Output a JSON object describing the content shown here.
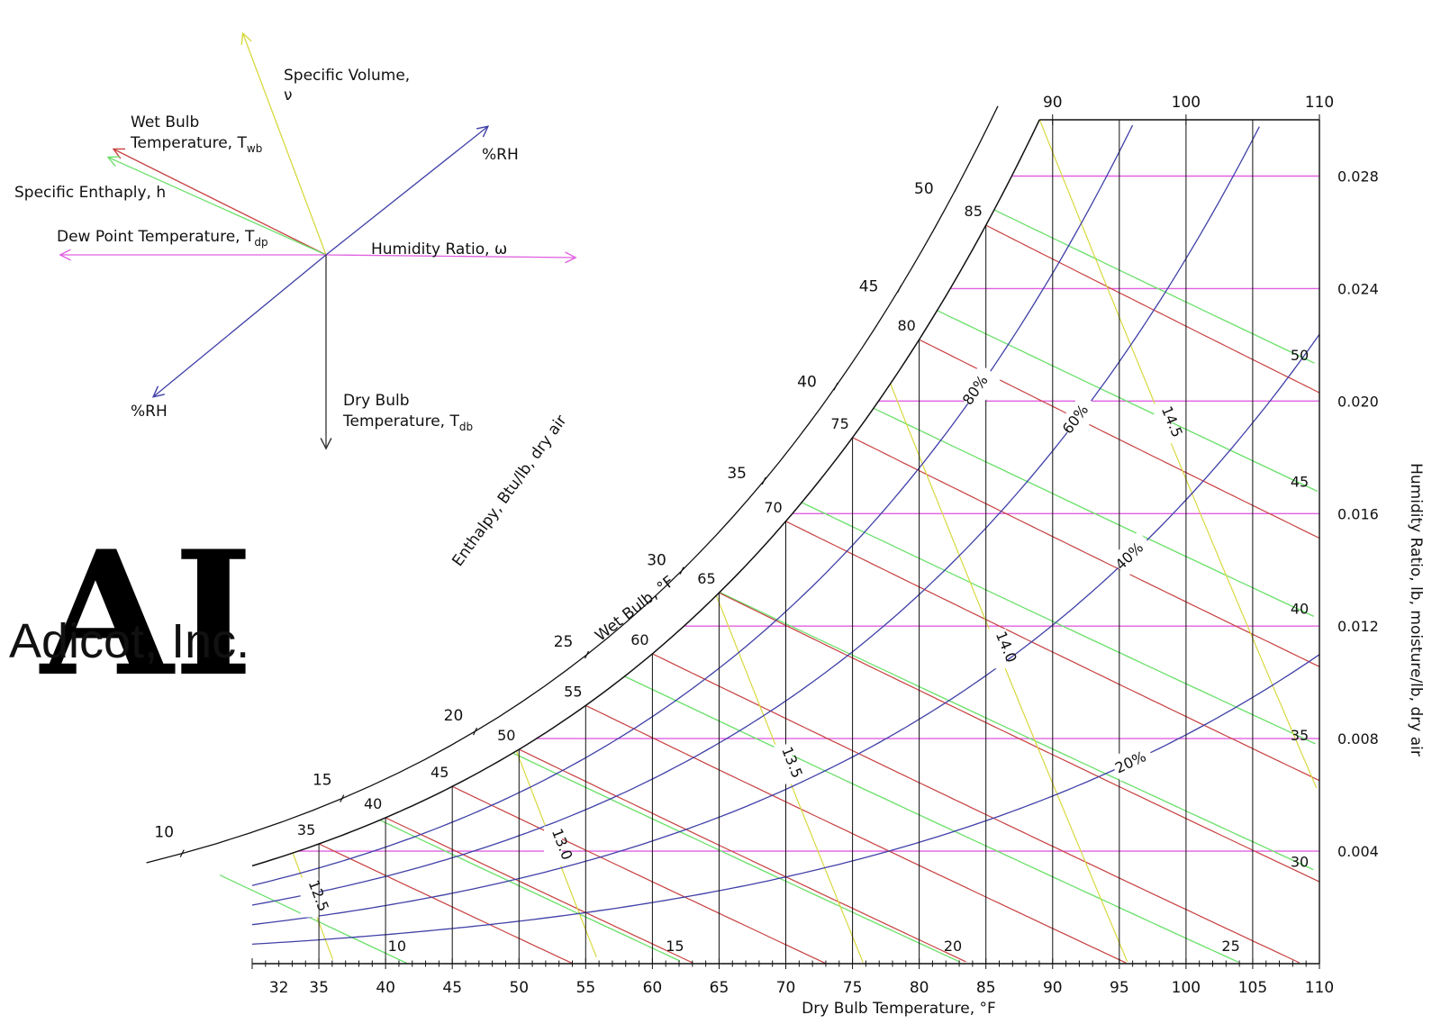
{
  "chart_data": {
    "type": "psychrometric",
    "title": "",
    "xlabel": "Dry Bulb Temperature, °F",
    "ylabel": "Humidity Ratio, lb, moisture/lb, dry air",
    "xlim": [
      30,
      110
    ],
    "ylim": [
      0,
      0.03
    ],
    "x_ticks": [
      "32",
      "35",
      "40",
      "45",
      "50",
      "55",
      "60",
      "65",
      "70",
      "75",
      "80",
      "85",
      "90",
      "95",
      "100",
      "105",
      "110"
    ],
    "top_ticks": [
      "90",
      "100",
      "110"
    ],
    "y_ticks": [
      "0.004",
      "0.008",
      "0.012",
      "0.016",
      "0.020",
      "0.024",
      "0.028"
    ],
    "enthalpy_label": "Enthalpy, Btu/lb, dry air",
    "enthalpy_values": [
      "10",
      "15",
      "20",
      "25",
      "30",
      "35",
      "40",
      "45",
      "50"
    ],
    "enthalpy_right_values": [
      "10",
      "15",
      "20",
      "25",
      "30",
      "35",
      "40",
      "45",
      "50"
    ],
    "wet_bulb_label": "Wet Bulb, °F",
    "wet_bulb_values": [
      "35",
      "40",
      "45",
      "50",
      "55",
      "60",
      "65",
      "70",
      "75",
      "80",
      "85"
    ],
    "rh_values": [
      "20%",
      "40%",
      "60%",
      "80%"
    ],
    "specific_volume_values": [
      "12.5",
      "13.0",
      "13.5",
      "14.0",
      "14.5"
    ]
  },
  "legend": {
    "specific_volume": "Specific Volume,",
    "specific_volume_symbol": "ν",
    "wet_bulb_1": "Wet Bulb",
    "wet_bulb_2": "Temperature, T",
    "wet_bulb_sub": "wb",
    "enthalpy": "Specific Enthaply, h",
    "dew_point": "Dew Point Temperature, T",
    "dew_point_sub": "dp",
    "humidity_ratio": "Humidity Ratio, ω",
    "rh_top": "%RH",
    "rh_bottom": "%RH",
    "dry_bulb_1": "Dry Bulb",
    "dry_bulb_2": "Temperature, T",
    "dry_bulb_sub": "db"
  },
  "logo": {
    "letters": "AI",
    "company": "Adicot, Inc."
  },
  "colors": {
    "axis": "#111111",
    "saturation": "#111111",
    "enthalpy": "#6be06b",
    "wet_bulb": "#c84040",
    "relative_humidity": "#4040a8",
    "specific_volume": "#d8d840",
    "humidity_ratio": "#e060e0",
    "dew_point": "#e060e0",
    "logo_text": "#c0662a"
  }
}
